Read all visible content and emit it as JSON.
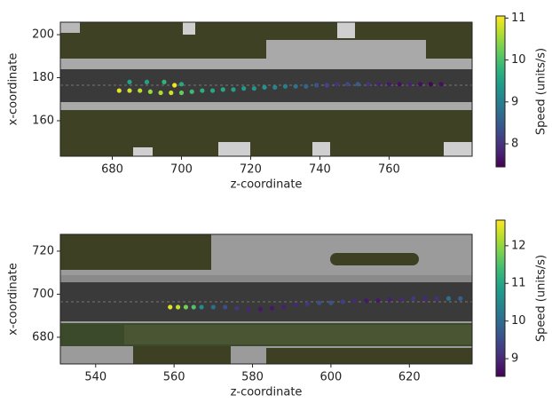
{
  "chart_data": [
    {
      "type": "scatter",
      "xlabel": "z-coordinate",
      "ylabel": "x-coordinate",
      "colorbar_label": "Speed (units/s)",
      "colormap": "viridis",
      "xlim": [
        665,
        784
      ],
      "ylim": [
        143.5,
        205.8
      ],
      "xticks": [
        680,
        700,
        720,
        740,
        760
      ],
      "yticks": [
        160,
        180,
        200
      ],
      "clim": [
        7.45,
        11.05
      ],
      "cticks": [
        8,
        9,
        10,
        11
      ],
      "x": [
        682,
        685,
        688,
        691,
        694,
        697,
        700,
        703,
        706,
        709,
        712,
        715,
        718,
        721,
        724,
        727,
        730,
        733,
        736,
        739,
        742,
        745,
        748,
        751,
        754,
        757,
        760,
        763,
        766,
        769,
        772,
        775,
        685,
        690,
        695,
        700,
        698
      ],
      "y": [
        174,
        174,
        174,
        173.5,
        173,
        173,
        173,
        173.5,
        174,
        174,
        174.5,
        174.5,
        175,
        175,
        175.5,
        175.5,
        176,
        176,
        176,
        176.5,
        176.5,
        177,
        177,
        177,
        177,
        177,
        177,
        177,
        177,
        177,
        177,
        177,
        178,
        178,
        178,
        177,
        176.5
      ],
      "c": [
        10.9,
        10.8,
        10.7,
        10.5,
        10.6,
        10.8,
        10.2,
        9.9,
        9.7,
        9.6,
        9.6,
        9.5,
        9.4,
        9.3,
        9.3,
        9.1,
        9.0,
        8.8,
        8.6,
        8.4,
        8.2,
        8.0,
        8.2,
        8.5,
        8.0,
        7.8,
        7.7,
        7.6,
        7.8,
        7.6,
        7.5,
        7.6,
        9.5,
        9.5,
        9.8,
        9.6,
        11.0
      ]
    },
    {
      "type": "scatter",
      "xlabel": "z-coordinate",
      "ylabel": "x-coordinate",
      "colorbar_label": "Speed (units/s)",
      "colormap": "viridis",
      "xlim": [
        531,
        636
      ],
      "ylim": [
        667.6,
        727.8
      ],
      "xticks": [
        540,
        560,
        580,
        600,
        620
      ],
      "yticks": [
        680,
        700,
        720
      ],
      "clim": [
        8.53,
        12.68
      ],
      "cticks": [
        9,
        10,
        11,
        12
      ],
      "x": [
        559,
        561,
        563,
        565,
        567,
        570,
        573,
        576,
        579,
        582,
        585,
        588,
        591,
        594,
        597,
        600,
        603,
        606,
        609,
        612,
        615,
        618,
        621,
        624,
        627,
        630,
        633
      ],
      "y": [
        694,
        694,
        694,
        694,
        694,
        694,
        694,
        693.5,
        693,
        693,
        693.5,
        694,
        695,
        695.5,
        696,
        696,
        696.5,
        697,
        697,
        697,
        697.5,
        697.5,
        698,
        698,
        698,
        698,
        698
      ],
      "c": [
        12.5,
        12.3,
        11.8,
        11.5,
        10.5,
        10.0,
        9.5,
        9.2,
        9.0,
        8.8,
        8.8,
        8.9,
        9.0,
        9.2,
        9.5,
        9.6,
        9.3,
        9.0,
        8.8,
        8.8,
        8.9,
        9.0,
        9.2,
        9.0,
        9.1,
        10.0,
        9.8
      ]
    }
  ]
}
